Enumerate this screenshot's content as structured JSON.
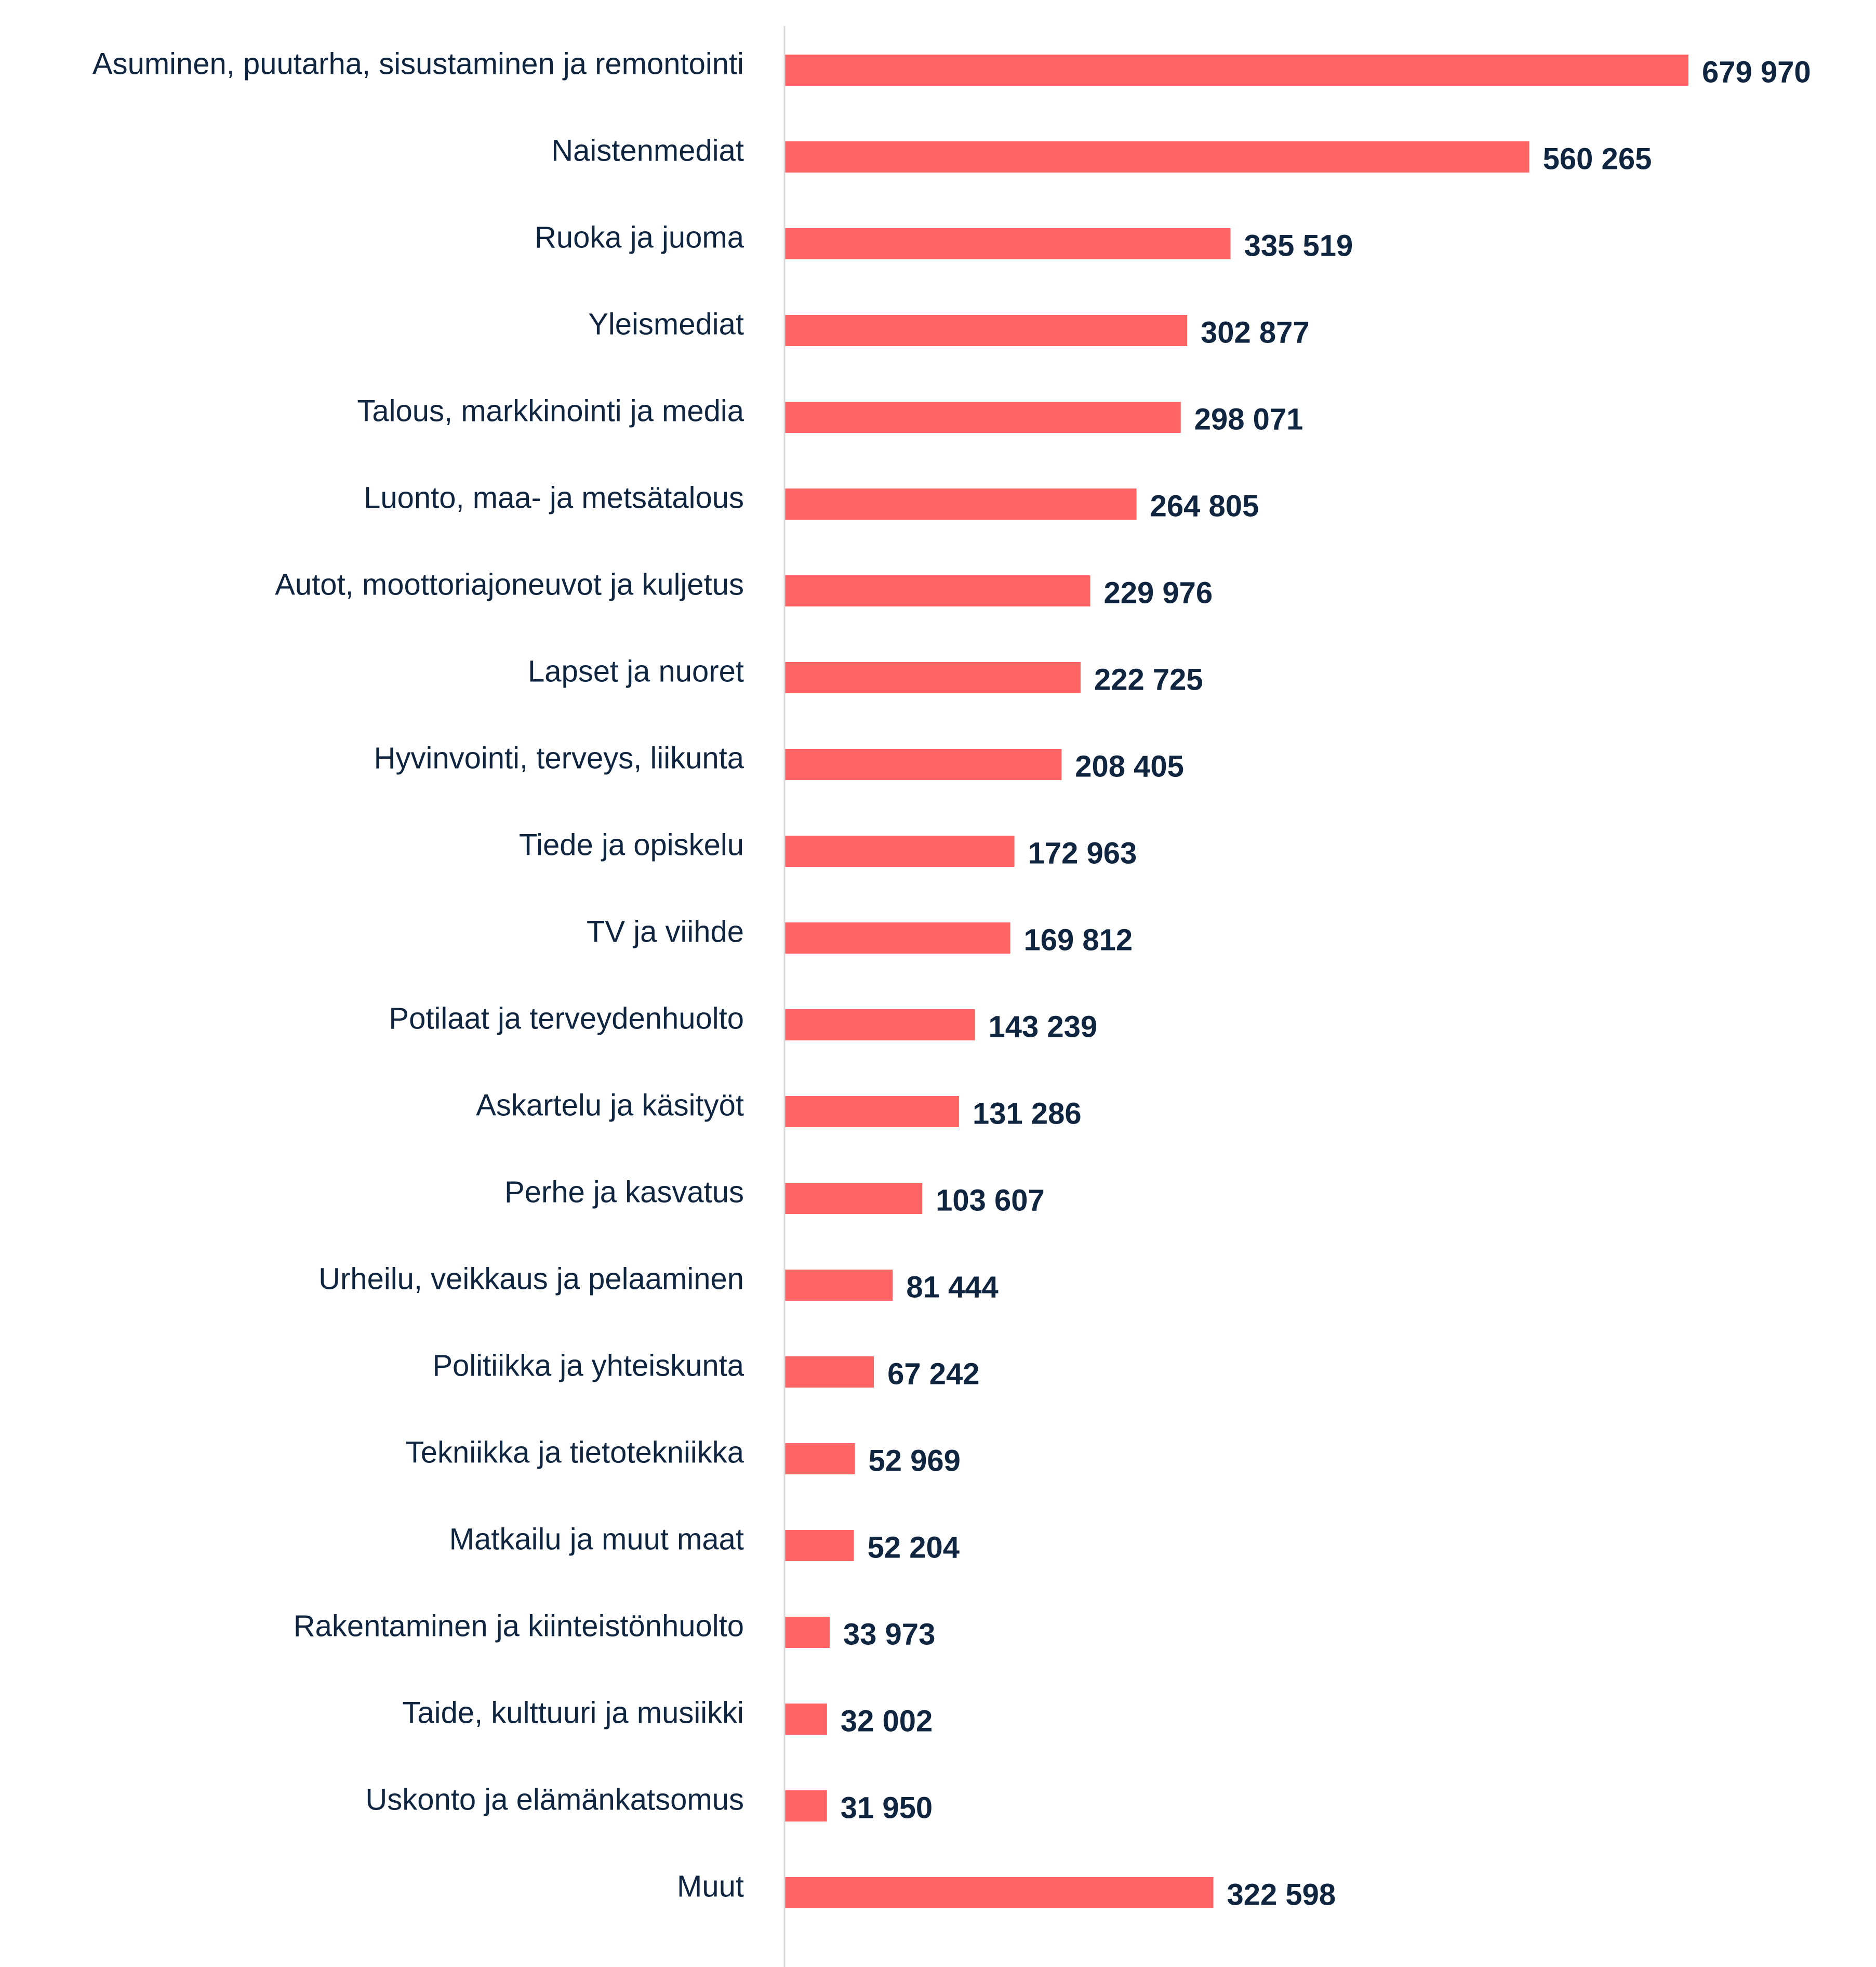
{
  "colors": {
    "bar": "#ff6464",
    "text": "#0f2540",
    "axis": "#d9d9d9",
    "background": "#ffffff"
  },
  "chart_data": {
    "type": "bar",
    "orientation": "horizontal",
    "title": "",
    "xlabel": "",
    "ylabel": "",
    "grid": false,
    "legend": "none",
    "xlim": [
      0,
      679970
    ],
    "value_format": "space-thousands",
    "categories": [
      "Asuminen, puutarha, sisustaminen ja remontointi",
      "Naistenmediat",
      "Ruoka ja juoma",
      "Yleismediat",
      "Talous, markkinointi ja media",
      "Luonto, maa- ja metsätalous",
      "Autot, moottoriajoneuvot ja kuljetus",
      "Lapset ja nuoret",
      "Hyvinvointi, terveys, liikunta",
      "Tiede ja opiskelu",
      "TV ja viihde",
      "Potilaat ja terveydenhuolto",
      "Askartelu ja käsityöt",
      "Perhe ja kasvatus",
      "Urheilu, veikkaus ja pelaaminen",
      "Politiikka ja yhteiskunta",
      "Tekniikka ja tietotekniikka",
      "Matkailu ja muut maat",
      "Rakentaminen ja kiinteistönhuolto",
      "Taide, kulttuuri ja musiikki",
      "Uskonto ja elämänkatsomus",
      "Muut"
    ],
    "values": [
      679970,
      560265,
      335519,
      302877,
      298071,
      264805,
      229976,
      222725,
      208405,
      172963,
      169812,
      143239,
      131286,
      103607,
      81444,
      67242,
      52969,
      52204,
      33973,
      32002,
      31950,
      322598
    ],
    "value_labels": [
      "679 970",
      "560 265",
      "335 519",
      "302 877",
      "298 071",
      "264 805",
      "229 976",
      "222 725",
      "208 405",
      "172 963",
      "169 812",
      "143 239",
      "131 286",
      "103 607",
      "81 444",
      "67 242",
      "52 969",
      "52 204",
      "33 973",
      "32 002",
      "31 950",
      "322 598"
    ]
  }
}
